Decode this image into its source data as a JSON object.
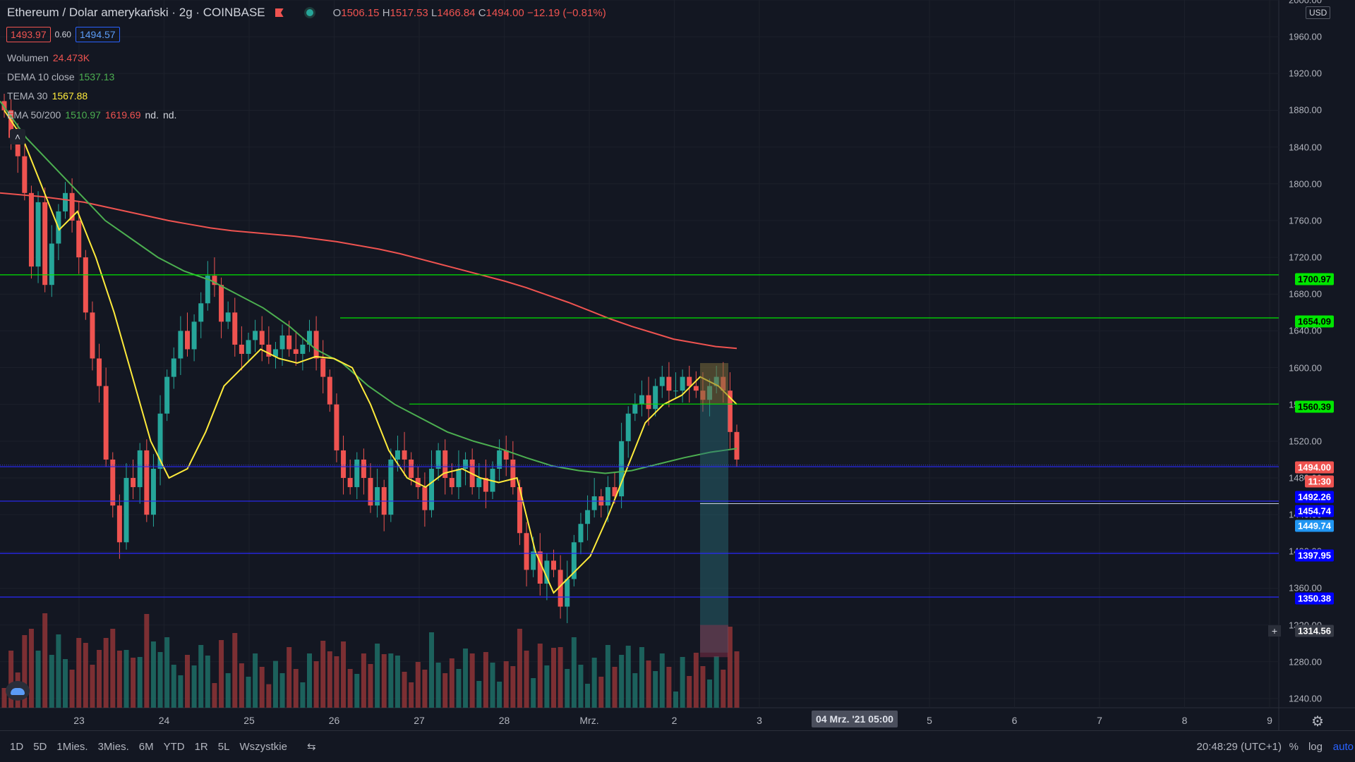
{
  "header": {
    "symbol": "Ethereum / Dolar amerykański · 2g · COINBASE",
    "open_label": "O",
    "open": "1506.15",
    "high_label": "H",
    "high": "1517.53",
    "low_label": "L",
    "low": "1466.84",
    "close_label": "C",
    "close": "1494.00",
    "change": "−12.19 (−0.81%)"
  },
  "bidask": {
    "bid": "1493.97",
    "spread": "0.60",
    "ask": "1494.57"
  },
  "indicators": {
    "volume": {
      "label": "Wolumen",
      "value": "24.473K"
    },
    "dema": {
      "label": "DEMA 10 close",
      "value": "1537.13"
    },
    "tema": {
      "label": "TEMA 30",
      "value": "1567.88"
    },
    "ema": {
      "label": "EMA 50/200",
      "v1": "1510.97",
      "v2": "1619.69",
      "v3": "nd.",
      "v4": "nd."
    }
  },
  "currency": "USD",
  "colors": {
    "up": "#26a69a",
    "down": "#ef5350",
    "ema50": "#4caf50",
    "ema200": "#ef5350",
    "tema": "#ffeb3b",
    "hline_green": "#00e600",
    "hline_blue": "#2196f3"
  },
  "price_labels": {
    "l1700": "1700.97",
    "l1654": "1654.09",
    "l1560": "1560.39",
    "last": "1494.00",
    "countdown": "11:30",
    "l1492": "1492.26",
    "l1454": "1454.74",
    "l1449": "1449.74",
    "l1397": "1397.95",
    "l1350": "1350.38",
    "cursor": "1314.56"
  },
  "x_highlight": "04 Mrz. '21   05:00",
  "bottom_bar": {
    "timeframes": [
      "1D",
      "5D",
      "1Mies.",
      "3Mies.",
      "6M",
      "YTD",
      "1R",
      "5L",
      "Wszystkie"
    ],
    "time": "20:48:29 (UTC+1)",
    "percent": "%",
    "log": "log",
    "auto": "auto"
  },
  "chart_data": {
    "type": "candlestick",
    "y_axis": {
      "range": [
        1230,
        2000
      ],
      "ticks": [
        2000,
        1960,
        1920,
        1880,
        1840,
        1800,
        1760,
        1720,
        1680,
        1640,
        1600,
        1560,
        1520,
        1480,
        1440,
        1400,
        1360,
        1320,
        1280,
        1240
      ],
      "tick_labels": [
        "2000.00",
        "1960.00",
        "1920.00",
        "1880.00",
        "1840.00",
        "1800.00",
        "1760.00",
        "1720.00",
        "1680.00",
        "1640.00",
        "1600.00",
        "1560.00",
        "1520.00",
        "1480.00",
        "1440.00",
        "1400.00",
        "1360.00",
        "1320.00",
        "1280.00",
        "1240.00"
      ]
    },
    "x_axis": {
      "labels": [
        "23",
        "24",
        "25",
        "26",
        "27",
        "28",
        "Mrz.",
        "2",
        "3",
        "5",
        "6",
        "7",
        "8",
        "9"
      ]
    },
    "close_series": [
      1880,
      1850,
      1830,
      1790,
      1710,
      1780,
      1690,
      1735,
      1770,
      1790,
      1760,
      1720,
      1660,
      1610,
      1580,
      1500,
      1450,
      1410,
      1480,
      1470,
      1510,
      1440,
      1490,
      1550,
      1590,
      1610,
      1640,
      1620,
      1650,
      1670,
      1700,
      1690,
      1650,
      1660,
      1625,
      1615,
      1630,
      1640,
      1625,
      1612,
      1620,
      1635,
      1620,
      1615,
      1625,
      1640,
      1610,
      1590,
      1560,
      1510,
      1480,
      1470,
      1500,
      1480,
      1450,
      1470,
      1440,
      1500,
      1510,
      1500,
      1480,
      1470,
      1445,
      1490,
      1510,
      1480,
      1470,
      1490,
      1500,
      1470,
      1480,
      1465,
      1490,
      1510,
      1500,
      1470,
      1420,
      1380,
      1400,
      1365,
      1390,
      1380,
      1340,
      1370,
      1410,
      1430,
      1445,
      1460,
      1450,
      1470,
      1460,
      1520,
      1550,
      1560,
      1570,
      1555,
      1580,
      1590,
      1575,
      1575,
      1590,
      1580,
      1575,
      1565,
      1580,
      1590,
      1575,
      1530,
      1500
    ],
    "ema200": [
      1790,
      1788,
      1786,
      1783,
      1780,
      1775,
      1770,
      1765,
      1760,
      1756,
      1752,
      1749,
      1747,
      1745,
      1743,
      1740,
      1737,
      1733,
      1729,
      1724,
      1718,
      1712,
      1706,
      1700,
      1694,
      1687,
      1679,
      1671,
      1662,
      1653,
      1645,
      1638,
      1631,
      1627,
      1623,
      1621
    ],
    "ema50": [
      1890,
      1850,
      1820,
      1790,
      1760,
      1740,
      1720,
      1705,
      1695,
      1680,
      1665,
      1645,
      1620,
      1605,
      1580,
      1560,
      1545,
      1530,
      1520,
      1512,
      1502,
      1493,
      1488,
      1485,
      1488,
      1495,
      1502,
      1508,
      1512
    ],
    "tema30": [
      1880,
      1850,
      1800,
      1750,
      1770,
      1720,
      1660,
      1590,
      1520,
      1480,
      1490,
      1530,
      1580,
      1600,
      1620,
      1610,
      1605,
      1612,
      1610,
      1600,
      1560,
      1510,
      1480,
      1470,
      1485,
      1490,
      1480,
      1475,
      1480,
      1400,
      1355,
      1375,
      1395,
      1440,
      1490,
      1540,
      1560,
      1570,
      1590,
      1580,
      1560
    ],
    "horizontal_levels": [
      1700.97,
      1654.09,
      1560.39,
      1492.26,
      1454.74,
      1397.95,
      1350.38
    ]
  }
}
